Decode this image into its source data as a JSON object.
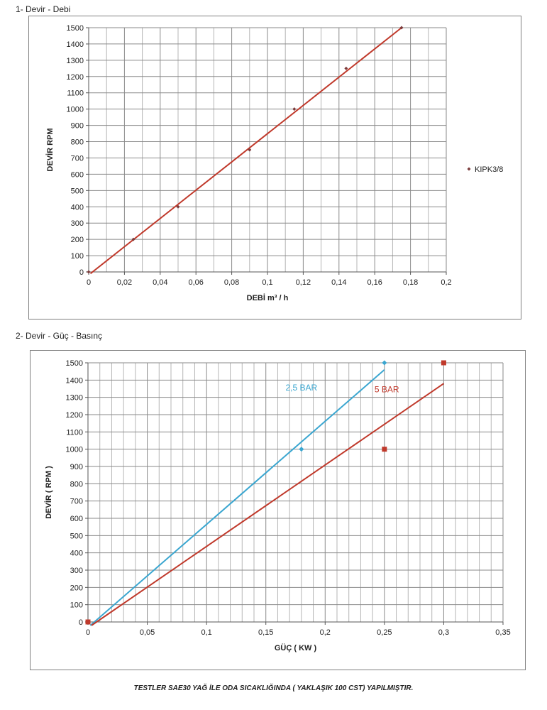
{
  "page": {
    "footer_note": "TESTLER SAE30 YAĞ İLE ODA SICAKLIĞINDA ( YAKLAŞIK 100 CST) YAPILMIŞTIR."
  },
  "chart_data": [
    {
      "type": "scatter",
      "section_title": "1- Devir - Debi",
      "title": "",
      "xlabel": "DEBİ m³ / h",
      "ylabel": "DEVİR RPM",
      "xlim": [
        0,
        0.2
      ],
      "ylim": [
        0,
        1500
      ],
      "x_ticks": [
        "0",
        "0,02",
        "0,04",
        "0,06",
        "0,08",
        "0,1",
        "0,12",
        "0,14",
        "0,16",
        "0,18",
        "0,2"
      ],
      "y_ticks": [
        "0",
        "100",
        "200",
        "300",
        "400",
        "500",
        "600",
        "700",
        "800",
        "900",
        "1000",
        "1100",
        "1200",
        "1300",
        "1400",
        "1500"
      ],
      "grid": true,
      "legend_position": "right",
      "series": [
        {
          "name": "KIPK3/8",
          "color": "#7b3b3b",
          "marker": "diamond",
          "points": [
            {
              "x": 0,
              "y": 0
            },
            {
              "x": 0.025,
              "y": 200
            },
            {
              "x": 0.05,
              "y": 400
            },
            {
              "x": 0.09,
              "y": 750
            },
            {
              "x": 0.115,
              "y": 1000
            },
            {
              "x": 0.144,
              "y": 1250
            },
            {
              "x": 0.175,
              "y": 1500
            }
          ]
        }
      ],
      "trendlines": [
        {
          "color": "#c0392b",
          "from": {
            "x": 0.001,
            "y": -10
          },
          "to": {
            "x": 0.175,
            "y": 1500
          }
        }
      ]
    },
    {
      "type": "scatter",
      "section_title": "2- Devir - Güç - Basınç",
      "title": "",
      "xlabel": "GÜÇ ( KW )",
      "ylabel": "DEVİR ( RPM )",
      "xlim": [
        0,
        0.35
      ],
      "ylim": [
        0,
        1500
      ],
      "x_ticks": [
        "0",
        "0,05",
        "0,1",
        "0,15",
        "0,2",
        "0,25",
        "0,3",
        "0,35"
      ],
      "y_ticks": [
        "0",
        "100",
        "200",
        "300",
        "400",
        "500",
        "600",
        "700",
        "800",
        "900",
        "1000",
        "1100",
        "1200",
        "1300",
        "1400",
        "1500"
      ],
      "grid": true,
      "series": [
        {
          "name": "2,5 BAR",
          "color": "#3aa6d0",
          "marker": "diamond",
          "points": [
            {
              "x": 0,
              "y": 0
            },
            {
              "x": 0.18,
              "y": 1000
            },
            {
              "x": 0.25,
              "y": 1500
            }
          ],
          "trendline": {
            "from": {
              "x": 0.002,
              "y": -20
            },
            "to": {
              "x": 0.25,
              "y": 1460
            }
          },
          "label": {
            "x": 0.18,
            "y": 1340
          }
        },
        {
          "name": "5 BAR",
          "color": "#c0392b",
          "marker": "square",
          "points": [
            {
              "x": 0,
              "y": 0
            },
            {
              "x": 0.25,
              "y": 1000
            },
            {
              "x": 0.3,
              "y": 1500
            }
          ],
          "trendline": {
            "from": {
              "x": 0.003,
              "y": -20
            },
            "to": {
              "x": 0.3,
              "y": 1380
            }
          },
          "label": {
            "x": 0.252,
            "y": 1330
          }
        }
      ]
    }
  ]
}
